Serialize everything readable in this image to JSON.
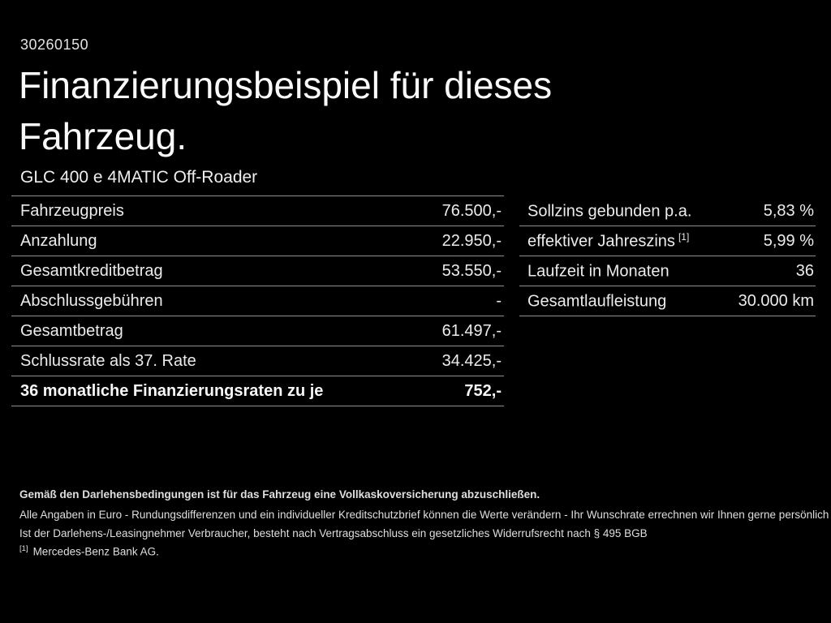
{
  "page": {
    "doc_number": "30260150",
    "title_line1": "Finanzierungsbeispiel für dieses",
    "title_line2": "Fahrzeug.",
    "vehicle_model": "GLC 400 e 4MATIC Off-Roader"
  },
  "tables": {
    "left": {
      "rows": [
        {
          "label": "Fahrzeugpreis",
          "value": "76.500,-"
        },
        {
          "label": "Anzahlung",
          "value": "22.950,-"
        },
        {
          "label": "Gesamtkreditbetrag",
          "value": "53.550,-"
        },
        {
          "label": "Abschlussgebühren",
          "value": "-"
        },
        {
          "label": "Gesamtbetrag",
          "value": "61.497,-"
        },
        {
          "label": "Schlussrate als 37. Rate",
          "value": "34.425,-"
        },
        {
          "label": "36 monatliche Finanzierungsraten zu je",
          "value": "752,-"
        }
      ]
    },
    "right": {
      "rows": [
        {
          "label": "Sollzins gebunden p.a.",
          "label_sup": "",
          "value": "5,83 %"
        },
        {
          "label": "effektiver Jahreszins",
          "label_sup": "[1]",
          "value": "5,99 %"
        },
        {
          "label": "Laufzeit in Monaten",
          "label_sup": "",
          "value": "36"
        },
        {
          "label": "Gesamtlaufleistung",
          "label_sup": "",
          "value": "30.000 km"
        }
      ]
    }
  },
  "footer": {
    "insurance_note": "Gemäß den Darlehensbedingungen ist für das Fahrzeug eine Vollkaskoversicherung abzuschließen.",
    "disclaimer_line1": "Alle Angaben in Euro - Rundungsdifferenzen und ein individueller Kreditschutzbrief können die Werte verändern - Ihr Wunschrate errechnen wir Ihnen gerne persönlich",
    "disclaimer_line2": "Ist der Darlehens-/Leasingnehmer Verbraucher, besteht nach Vertragsabschluss ein gesetzliches Widerrufsrecht nach § 495 BGB",
    "footnote_marker": "[1]",
    "footnote_text": "Mercedes-Benz Bank AG."
  },
  "colors": {
    "background": "#000000",
    "text": "#f0f0f0",
    "divider": "#8f8f8f"
  }
}
